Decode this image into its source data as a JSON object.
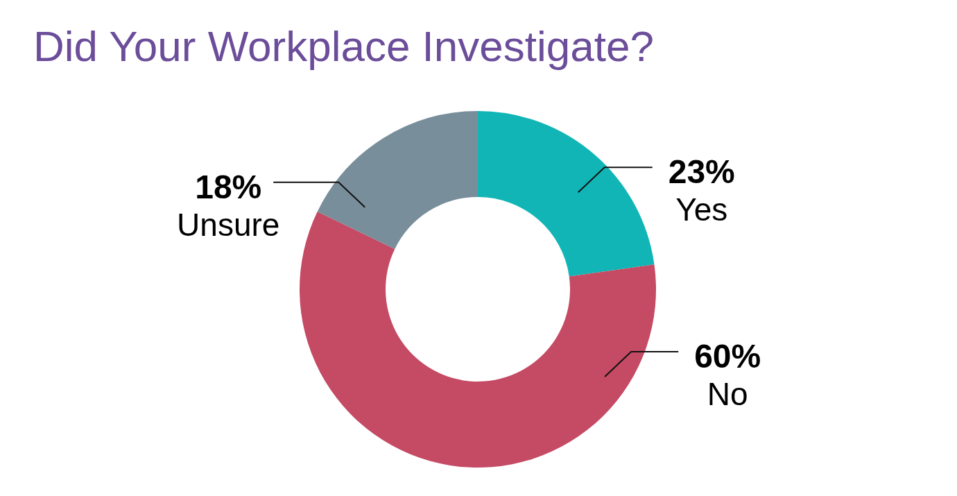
{
  "chart_data": {
    "type": "donut",
    "title": "Did Your Workplace Investigate?",
    "categories": [
      "Yes",
      "No",
      "Unsure"
    ],
    "values": [
      23,
      60,
      18
    ],
    "value_labels": [
      "23%",
      "60%",
      "18%"
    ],
    "colors": [
      "#12b5b6",
      "#c54a64",
      "#788e9a"
    ]
  }
}
